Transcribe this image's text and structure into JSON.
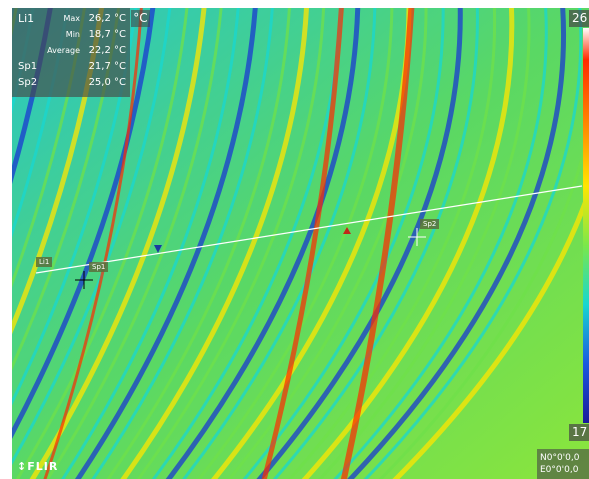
{
  "readout": {
    "line_label": "Li1",
    "max_label": "Max",
    "max_value": "26,2 °C",
    "min_label": "Min",
    "min_value": "18,7 °C",
    "avg_label": "Average",
    "avg_value": "22,2 °C",
    "sp1_label": "Sp1",
    "sp1_value": "21,7 °C",
    "sp2_label": "Sp2",
    "sp2_value": "25,0 °C"
  },
  "unit": "°C",
  "scale": {
    "max": "26",
    "min": "17"
  },
  "gps": {
    "lat": "N0°0'0,0",
    "lon": "E0°0'0,0"
  },
  "logo": "↕FLIR",
  "overlay": {
    "line_tag": "Li1",
    "sp1_tag": "Sp1",
    "sp2_tag": "Sp2"
  },
  "colors": {
    "hot": "#ff2a00",
    "warm": "#ffe600",
    "mid": "#6fe04a",
    "cool": "#18d7d0",
    "cold": "#1a3ad0",
    "min_marker": "#1a3aa0",
    "max_marker": "#c0281a"
  }
}
